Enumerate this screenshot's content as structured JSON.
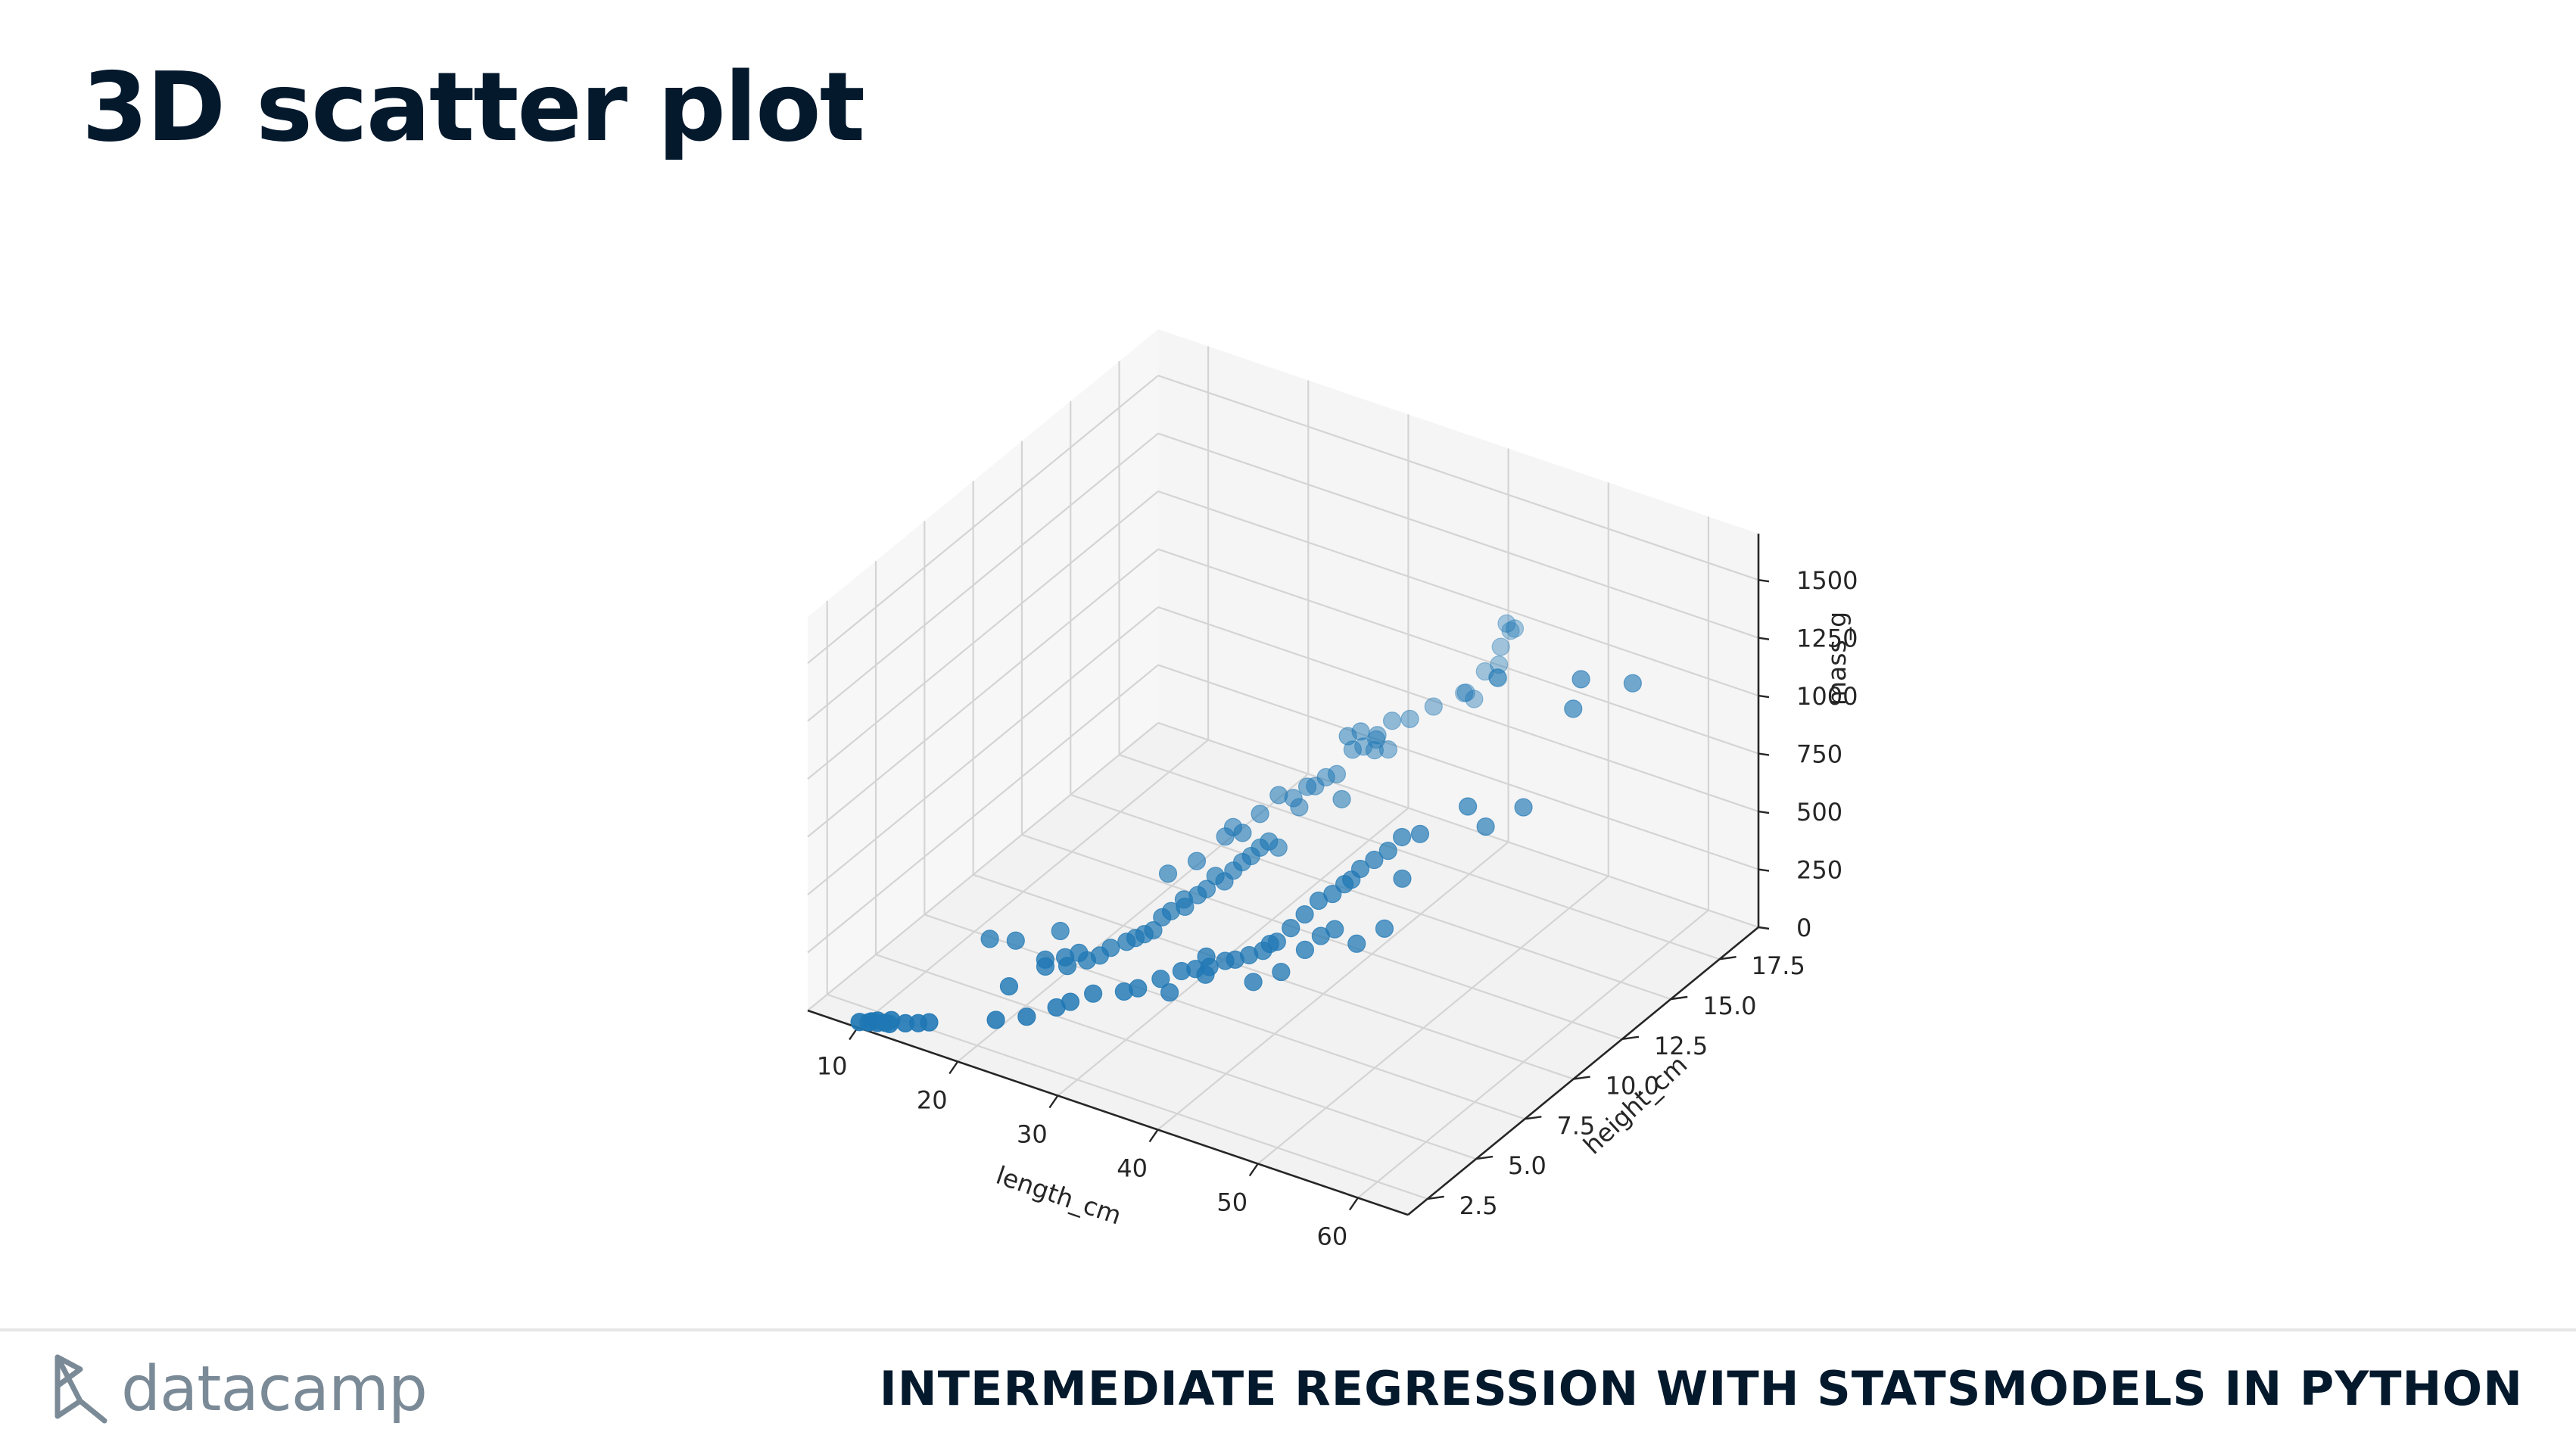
{
  "slide_title": "3D scatter plot",
  "footer": {
    "logo_text": "datacamp",
    "course_title": "INTERMEDIATE REGRESSION WITH STATSMODELS IN PYTHON"
  },
  "chart_data": {
    "type": "scatter",
    "projection": "3d",
    "xlabel": "length_cm",
    "ylabel": "height_cm",
    "zlabel": "mass_g",
    "xlim": [
      5,
      65
    ],
    "ylim": [
      1.5,
      19.5
    ],
    "zlim": [
      0,
      1700
    ],
    "xticks": [
      "10",
      "20",
      "30",
      "40",
      "50",
      "60"
    ],
    "yticks": [
      "2.5",
      "5.0",
      "7.5",
      "10.0",
      "12.5",
      "15.0",
      "17.5"
    ],
    "zticks": [
      "0",
      "250",
      "500",
      "750",
      "1000",
      "1250",
      "1500"
    ],
    "grid": true,
    "marker_color": "#1f77b4",
    "series": [
      {
        "points": [
          [
            9.8,
            1.7,
            7
          ],
          [
            10.5,
            1.8,
            9
          ],
          [
            10.6,
            1.9,
            8
          ],
          [
            11.0,
            2.0,
            10
          ],
          [
            11.2,
            1.9,
            10
          ],
          [
            11.8,
            2.0,
            12
          ],
          [
            12.0,
            2.2,
            13
          ],
          [
            12.2,
            2.0,
            13
          ],
          [
            13.4,
            2.2,
            20
          ],
          [
            14.3,
            2.4,
            20
          ],
          [
            15.0,
            2.6,
            20
          ],
          [
            12.5,
            7.0,
            40
          ],
          [
            14.7,
            7.2,
            51
          ],
          [
            17.6,
            8.0,
            80
          ],
          [
            18.7,
            4.8,
            78
          ],
          [
            19.6,
            6.2,
            110
          ],
          [
            20.0,
            6.0,
            100
          ],
          [
            21.0,
            6.5,
            120
          ],
          [
            22.0,
            6.1,
            125
          ],
          [
            22.0,
            6.7,
            140
          ],
          [
            22.6,
            6.8,
            110
          ],
          [
            23.5,
            7.0,
            130
          ],
          [
            24.0,
            7.3,
            150
          ],
          [
            25.0,
            7.6,
            170
          ],
          [
            25.5,
            7.8,
            180
          ],
          [
            26.0,
            8.0,
            190
          ],
          [
            26.5,
            8.2,
            200
          ],
          [
            27.0,
            8.4,
            250
          ],
          [
            27.5,
            8.6,
            270
          ],
          [
            28.0,
            9.0,
            300
          ],
          [
            28.5,
            8.8,
            290
          ],
          [
            29.0,
            9.2,
            320
          ],
          [
            29.5,
            9.4,
            340
          ],
          [
            30.0,
            9.6,
            390
          ],
          [
            30.5,
            9.8,
            360
          ],
          [
            31.0,
            10.0,
            400
          ],
          [
            31.5,
            10.2,
            430
          ],
          [
            32.0,
            10.4,
            450
          ],
          [
            32.5,
            10.6,
            480
          ],
          [
            33.0,
            10.8,
            500
          ],
          [
            23.5,
            10.5,
            242
          ],
          [
            25.4,
            11.0,
            290
          ],
          [
            26.3,
            12.0,
            340
          ],
          [
            26.5,
            12.3,
            363
          ],
          [
            29.0,
            11.5,
            430
          ],
          [
            29.0,
            12.4,
            450
          ],
          [
            29.7,
            13.0,
            500
          ],
          [
            30.0,
            13.9,
            390
          ],
          [
            30.0,
            13.6,
            450
          ],
          [
            31.0,
            13.8,
            500
          ],
          [
            31.0,
            14.2,
            475
          ],
          [
            31.5,
            14.5,
            500
          ],
          [
            32.0,
            14.8,
            500
          ],
          [
            33.0,
            15.1,
            600
          ],
          [
            33.5,
            15.4,
            600
          ],
          [
            33.5,
            14.6,
            700
          ],
          [
            34.0,
            15.0,
            700
          ],
          [
            34.0,
            15.8,
            610
          ],
          [
            34.5,
            15.6,
            650
          ],
          [
            35.0,
            15.9,
            575
          ],
          [
            35.0,
            16.1,
            685
          ],
          [
            35.0,
            15.2,
            620
          ],
          [
            36.0,
            16.5,
            680
          ],
          [
            37.0,
            17.2,
            700
          ],
          [
            38.5,
            18.0,
            725
          ],
          [
            38.5,
            18.1,
            720
          ],
          [
            39.5,
            18.0,
            714
          ],
          [
            41.0,
            18.5,
            850
          ],
          [
            41.0,
            18.9,
            1000
          ],
          [
            41.0,
            18.6,
            920
          ],
          [
            41.0,
            19.1,
            955
          ],
          [
            40.0,
            18.3,
            820
          ],
          [
            41.5,
            18.2,
            820
          ],
          [
            43.0,
            17.4,
            900
          ],
          [
            42.0,
            18.8,
            1000
          ],
          [
            32.0,
            11.8,
            390
          ],
          [
            36.0,
            13.0,
            575
          ],
          [
            20.5,
            3.2,
            70
          ],
          [
            23.0,
            3.5,
            100
          ],
          [
            25.0,
            4.0,
            135
          ],
          [
            26.0,
            4.2,
            160
          ],
          [
            27.5,
            4.6,
            190
          ],
          [
            30.0,
            4.9,
            215
          ],
          [
            31.0,
            5.1,
            230
          ],
          [
            32.5,
            5.5,
            265
          ],
          [
            34.0,
            5.8,
            300
          ],
          [
            35.0,
            6.0,
            310
          ],
          [
            36.0,
            6.2,
            320
          ],
          [
            37.0,
            6.5,
            340
          ],
          [
            38.0,
            6.5,
            360
          ],
          [
            39.0,
            6.7,
            380
          ],
          [
            40.0,
            6.9,
            400
          ],
          [
            41.0,
            7.1,
            440
          ],
          [
            42.0,
            7.3,
            500
          ],
          [
            43.0,
            7.5,
            560
          ],
          [
            44.0,
            7.7,
            620
          ],
          [
            45.0,
            7.9,
            650
          ],
          [
            46.0,
            8.0,
            700
          ],
          [
            47.0,
            8.3,
            760
          ],
          [
            48.0,
            8.5,
            800
          ],
          [
            49.0,
            8.7,
            840
          ],
          [
            50.0,
            8.9,
            900
          ],
          [
            35.5,
            6.3,
            350
          ],
          [
            40.5,
            7.0,
            430
          ],
          [
            46.5,
            8.1,
            720
          ],
          [
            33.0,
            5.7,
            200
          ],
          [
            36.0,
            6.0,
            300
          ],
          [
            40.0,
            6.4,
            300
          ],
          [
            42.0,
            6.8,
            345
          ],
          [
            44.0,
            7.0,
            456
          ],
          [
            45.0,
            7.3,
            510
          ],
          [
            46.0,
            7.5,
            540
          ],
          [
            48.0,
            7.6,
            500
          ],
          [
            50.0,
            8.0,
            567
          ],
          [
            51.0,
            8.4,
            770
          ],
          [
            52.0,
            8.8,
            950
          ],
          [
            56.0,
            9.2,
            1100
          ],
          [
            57.0,
            9.6,
            1000
          ],
          [
            60.0,
            10.0,
            1100
          ],
          [
            64.0,
            10.5,
            1550
          ],
          [
            64.0,
            10.9,
            1650
          ],
          [
            68.0,
            11.5,
            1650
          ]
        ]
      }
    ]
  }
}
